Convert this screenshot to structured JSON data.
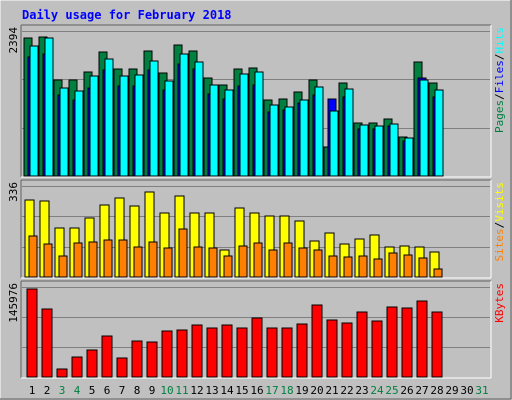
{
  "chart_data": {
    "type": "bar",
    "title": "Daily usage for February 2018",
    "colors": {
      "background": "#C0C0C0",
      "hits": "#00FFFF",
      "files": "#0000FF",
      "pages": "#008040",
      "visits": "#FFFF00",
      "sites": "#FF8000",
      "kbytes": "#FF0000",
      "title": "#0000FF",
      "weekend": "#008040",
      "weekday": "#000000"
    },
    "days": [
      "1",
      "2",
      "3",
      "4",
      "5",
      "6",
      "7",
      "8",
      "9",
      "10",
      "11",
      "12",
      "13",
      "14",
      "15",
      "16",
      "17",
      "18",
      "19",
      "20",
      "21",
      "22",
      "23",
      "24",
      "25",
      "26",
      "27",
      "28",
      "29",
      "30",
      "31"
    ],
    "weekend_days": [
      "3",
      "4",
      "10",
      "11",
      "17",
      "18",
      "24",
      "25",
      "31"
    ],
    "panels": [
      {
        "id": "hits",
        "ymax": "2394",
        "legend": [
          {
            "text": "Pages",
            "color": "#008040"
          },
          {
            "text": "Files",
            "color": "#0000FF"
          },
          {
            "text": "Hits",
            "color": "#00FFFF"
          }
        ],
        "ylim": [
          0,
          2394
        ],
        "series": [
          {
            "name": "Pages",
            "color": "#008040",
            "values": [
              2280,
              2300,
              1590,
              1580,
              1710,
              2040,
              1760,
              1760,
              2060,
              1700,
              2170,
              2070,
              1620,
              1510,
              1760,
              1780,
              1250,
              1270,
              1390,
              1580,
              480,
              1540,
              870,
              870,
              940,
              650,
              1880,
              1530
            ]
          },
          {
            "name": "Files",
            "color": "#0000FF",
            "values": [
              1960,
              2020,
              1340,
              1250,
              1450,
              1750,
              1480,
              1480,
              1750,
              1420,
              1850,
              1760,
              1360,
              1270,
              1480,
              1510,
              1060,
              1090,
              1200,
              1330,
              1270,
              1300,
              770,
              780,
              830,
              580,
              1610,
              1310
            ]
          },
          {
            "name": "Hits",
            "color": "#00FFFF",
            "values": [
              2140,
              2280,
              1460,
              1400,
              1650,
              1930,
              1650,
              1670,
              1900,
              1570,
              2020,
              1890,
              1500,
              1420,
              1680,
              1720,
              1180,
              1140,
              1260,
              1470,
              1080,
              1440,
              850,
              830,
              860,
              620,
              1580,
              1420
            ]
          }
        ]
      },
      {
        "id": "visits",
        "ymax": "336",
        "legend": [
          {
            "text": "Sites",
            "color": "#FF8000"
          },
          {
            "text": "Visits",
            "color": "#FFFF00"
          }
        ],
        "ylim": [
          0,
          336
        ],
        "series": [
          {
            "name": "Visits",
            "color": "#FFFF00",
            "values": [
              285,
              280,
              181,
              180,
              216,
              265,
              290,
              262,
              315,
              236,
              300,
              235,
              236,
              100,
              255,
              235,
              225,
              224,
              206,
              133,
              162,
              123,
              139,
              155,
              109,
              113,
              112,
              93
            ]
          },
          {
            "name": "Sites",
            "color": "#FF8000",
            "values": [
              150,
              123,
              76,
              124,
              130,
              136,
              138,
              110,
              128,
              108,
              176,
              110,
              108,
              78,
              116,
              125,
              100,
              124,
              108,
              98,
              76,
              74,
              78,
              66,
              90,
              80,
              70,
              30
            ]
          }
        ]
      },
      {
        "id": "kbytes",
        "ymax": "145976",
        "legend": [
          {
            "text": "KBytes",
            "color": "#FF0000"
          }
        ],
        "ylim": [
          0,
          145976
        ],
        "series": [
          {
            "name": "KBytes",
            "color": "#FF0000",
            "values": [
              142000,
              110000,
              13000,
              33000,
              43000,
              67000,
              31000,
              58000,
              56000,
              74000,
              76000,
              85000,
              80000,
              84000,
              80000,
              95000,
              79000,
              80000,
              86000,
              117000,
              93000,
              88000,
              105000,
              91000,
              113000,
              112000,
              123000,
              105000
            ]
          }
        ]
      }
    ]
  }
}
